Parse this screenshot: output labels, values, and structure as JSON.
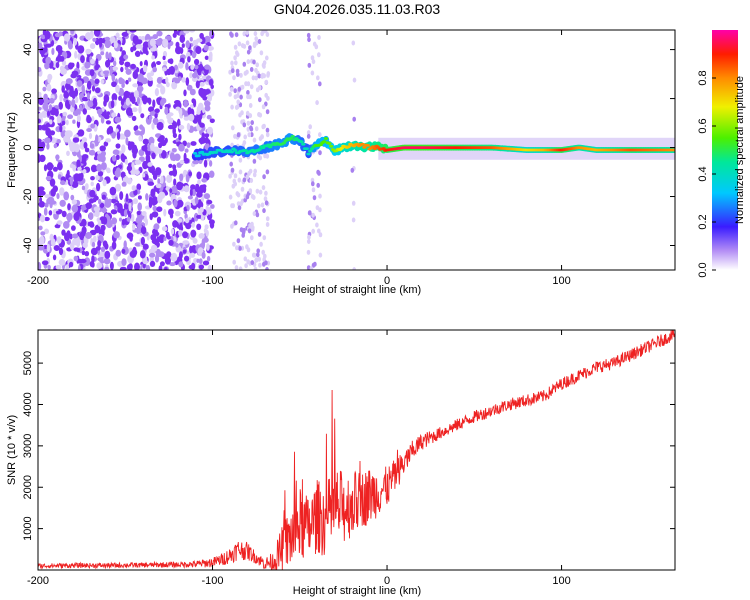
{
  "title": "GN04.2026.035.11.03.R03",
  "colors": {
    "snr_line": "#ee2222",
    "axis": "#000000",
    "background": "#ffffff",
    "noise_purple": "#7b2ff0",
    "noise_light": "#cdb8f5"
  },
  "chart_data": [
    {
      "type": "heatmap",
      "name": "spectrogram",
      "xlabel": "Height of straight line (km)",
      "ylabel": "Frequency (Hz)",
      "xlim": [
        -200,
        165
      ],
      "ylim": [
        -50,
        48
      ],
      "xticks": [
        -200,
        -100,
        0,
        100
      ],
      "yticks": [
        -40,
        -20,
        0,
        20,
        40
      ],
      "xtick_labels": [
        "-200",
        "-100",
        "0",
        "100"
      ],
      "ytick_labels": [
        "-40",
        "-20",
        "0",
        "20",
        "40"
      ],
      "colorbar": {
        "label": "Normalized spectral amplitude",
        "range": [
          0,
          1
        ],
        "ticks": [
          0,
          0.2,
          0.4,
          0.6,
          0.8
        ],
        "tick_labels": [
          "0.0",
          "0.2",
          "0.4",
          "0.6",
          "0.8"
        ]
      },
      "ridge_line": {
        "description": "Doppler carrier track",
        "x": [
          -110,
          -100,
          -90,
          -80,
          -70,
          -60,
          -55,
          -50,
          -45,
          -40,
          -35,
          -30,
          -25,
          -20,
          -15,
          -10,
          -5,
          0,
          10,
          20,
          40,
          60,
          80,
          90,
          100,
          110,
          120,
          140,
          165
        ],
        "y": [
          -3,
          -2,
          -1,
          -2,
          0,
          2,
          4,
          3,
          -2,
          1,
          3,
          -1,
          0,
          1,
          1,
          0,
          0,
          -1,
          0,
          0,
          0,
          0,
          -1,
          -1,
          -1,
          0,
          -1,
          -1,
          -1
        ],
        "amplitude": [
          0.35,
          0.4,
          0.4,
          0.45,
          0.45,
          0.5,
          0.5,
          0.45,
          0.4,
          0.55,
          0.55,
          0.6,
          0.7,
          0.75,
          0.8,
          0.8,
          0.85,
          0.9,
          0.95,
          0.95,
          0.9,
          0.85,
          0.7,
          0.75,
          0.9,
          0.8,
          0.75,
          0.85,
          0.8
        ]
      }
    },
    {
      "type": "line",
      "name": "snr",
      "xlabel": "Height of straight line (km)",
      "ylabel": "SNR (10 * v/v)",
      "xlim": [
        -200,
        165
      ],
      "ylim": [
        0,
        5800
      ],
      "xticks": [
        -200,
        -100,
        0,
        100
      ],
      "yticks": [
        1000,
        2000,
        3000,
        4000,
        5000
      ],
      "xtick_labels": [
        "-200",
        "-100",
        "0",
        "100"
      ],
      "ytick_labels": [
        "1000",
        "2000",
        "3000",
        "4000",
        "5000"
      ],
      "series": [
        {
          "name": "SNR",
          "x": [
            -200,
            -180,
            -160,
            -140,
            -120,
            -110,
            -100,
            -95,
            -90,
            -85,
            -80,
            -75,
            -70,
            -65,
            -60,
            -55,
            -50,
            -45,
            -40,
            -35,
            -30,
            -25,
            -20,
            -15,
            -10,
            -5,
            0,
            5,
            10,
            15,
            20,
            30,
            40,
            50,
            60,
            70,
            80,
            90,
            100,
            110,
            120,
            130,
            140,
            150,
            160,
            165
          ],
          "values": [
            100,
            110,
            110,
            120,
            130,
            140,
            180,
            250,
            350,
            500,
            450,
            300,
            150,
            200,
            500,
            800,
            1100,
            1000,
            1300,
            1200,
            1500,
            1500,
            1600,
            1700,
            1800,
            1900,
            2000,
            2300,
            2600,
            2900,
            3100,
            3300,
            3500,
            3700,
            3850,
            4000,
            4100,
            4200,
            4500,
            4700,
            4900,
            5000,
            5200,
            5400,
            5600,
            5700
          ],
          "noise": [
            60,
            60,
            60,
            60,
            70,
            80,
            120,
            150,
            200,
            250,
            220,
            150,
            150,
            250,
            600,
            800,
            900,
            800,
            900,
            900,
            1000,
            900,
            800,
            700,
            700,
            600,
            500,
            400,
            300,
            250,
            200,
            150,
            150,
            150,
            150,
            150,
            150,
            150,
            150,
            150,
            150,
            150,
            150,
            150,
            150,
            150
          ]
        }
      ]
    }
  ]
}
